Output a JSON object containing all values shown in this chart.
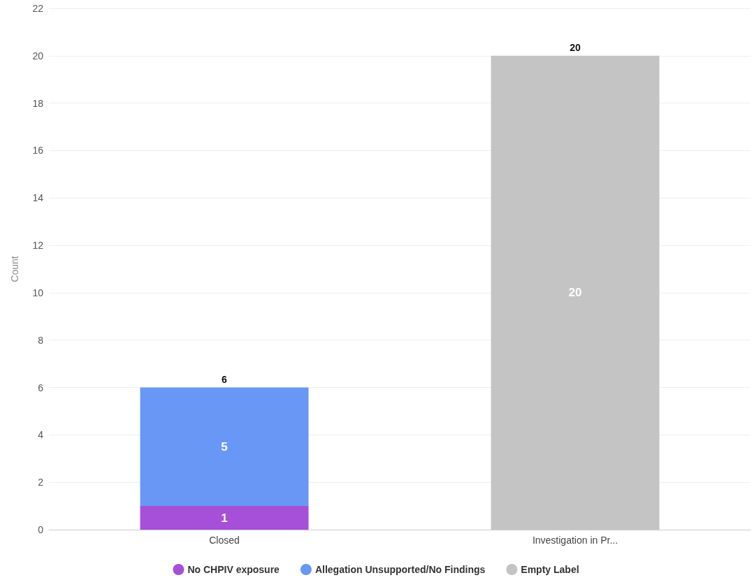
{
  "chart_data": {
    "type": "bar",
    "stacked": true,
    "ylabel": "Count",
    "categories": [
      "Closed",
      "Investigation in Pr..."
    ],
    "series": [
      {
        "name": "No CHPIV exposure",
        "color": "#a64fd9",
        "values": [
          1,
          null
        ]
      },
      {
        "name": "Allegation Unsupported/No Findings",
        "color": "#6897f5",
        "values": [
          5,
          null
        ]
      },
      {
        "name": "Empty Label",
        "color": "#c4c4c4",
        "values": [
          null,
          20
        ]
      }
    ],
    "data_labels": true,
    "totals": [
      "6",
      "20"
    ],
    "ylim": [
      0,
      22
    ],
    "yticks": [
      0,
      2,
      4,
      6,
      8,
      10,
      12,
      14,
      16,
      18,
      20,
      22
    ],
    "grid": "y",
    "legend": "bottom"
  }
}
